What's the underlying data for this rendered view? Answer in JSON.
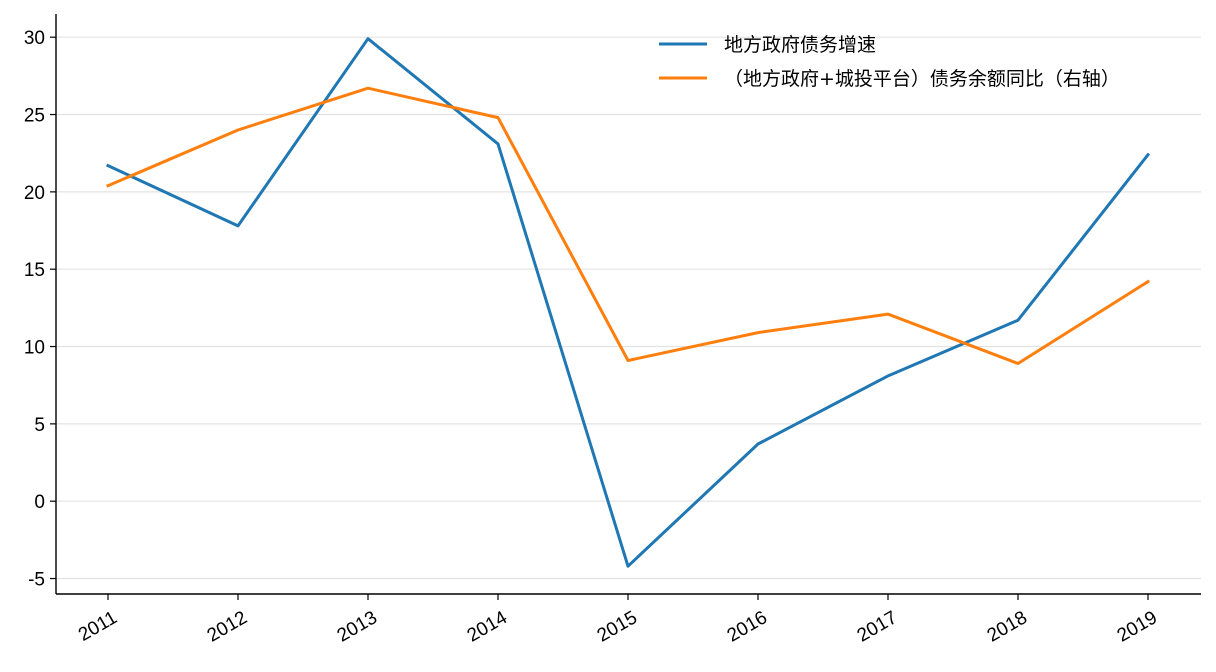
{
  "chart_data": {
    "type": "line",
    "title": "",
    "xlabel": "",
    "ylabel": "",
    "categories": [
      "2011",
      "2012",
      "2013",
      "2014",
      "2015",
      "2016",
      "2017",
      "2018",
      "2019"
    ],
    "ylim": [
      -6,
      31.5
    ],
    "yticks": [
      -5,
      0,
      5,
      10,
      15,
      20,
      25,
      30
    ],
    "grid": "horizontal",
    "legend": "top-right",
    "series": [
      {
        "name": "地方政府债务增速",
        "color": "#1f77b4",
        "values": [
          21.7,
          17.8,
          29.9,
          23.1,
          -4.2,
          3.7,
          8.1,
          11.7,
          22.4
        ]
      },
      {
        "name": "（地方政府+城投平台）债务余额同比（右轴）",
        "color": "#ff7f0e",
        "values": [
          20.4,
          24.0,
          26.7,
          24.8,
          9.1,
          10.9,
          12.1,
          8.9,
          14.2
        ]
      }
    ]
  }
}
